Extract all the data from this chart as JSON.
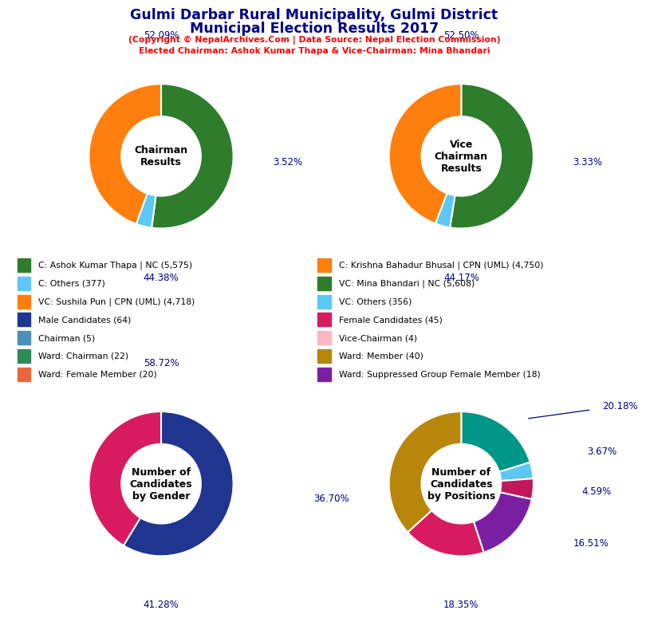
{
  "title_line1": "Gulmi Darbar Rural Municipality, Gulmi District",
  "title_line2": "Municipal Election Results 2017",
  "subtitle1": "(Copyright © NepalArchives.Com | Data Source: Nepal Election Commission)",
  "subtitle2": "Elected Chairman: Ashok Kumar Thapa & Vice-Chairman: Mina Bhandari",
  "chairman": {
    "label": "Chairman\nResults",
    "values": [
      52.09,
      3.52,
      44.38
    ],
    "colors": [
      "#2d7d2d",
      "#5bc8f5",
      "#ff7f0e"
    ],
    "pct_labels": [
      "52.09%",
      "3.52%",
      "44.38%"
    ]
  },
  "vice_chairman": {
    "label": "Vice\nChairman\nResults",
    "values": [
      52.5,
      3.33,
      44.17
    ],
    "colors": [
      "#2d7d2d",
      "#5bc8f5",
      "#ff7f0e"
    ],
    "pct_labels": [
      "52.50%",
      "3.33%",
      "44.17%"
    ]
  },
  "gender": {
    "label": "Number of\nCandidates\nby Gender",
    "values": [
      58.72,
      41.28
    ],
    "colors": [
      "#1f3590",
      "#d81b60"
    ],
    "pct_labels": [
      "58.72%",
      "41.28%"
    ]
  },
  "positions": {
    "label": "Number of\nCandidates\nby Positions",
    "values": [
      20.18,
      3.67,
      4.59,
      16.51,
      18.35,
      36.7
    ],
    "colors": [
      "#009688",
      "#5bc8f5",
      "#c2185b",
      "#7b1fa2",
      "#d81b60",
      "#b8860b"
    ],
    "pct_labels": [
      "20.18%",
      "3.67%",
      "4.59%",
      "16.51%",
      "18.35%",
      "36.70%"
    ]
  },
  "legend_left": [
    {
      "label": "C: Ashok Kumar Thapa | NC (5,575)",
      "color": "#2d7d2d"
    },
    {
      "label": "C: Others (377)",
      "color": "#5bc8f5"
    },
    {
      "label": "VC: Sushila Pun | CPN (UML) (4,718)",
      "color": "#ff7f0e"
    },
    {
      "label": "Male Candidates (64)",
      "color": "#1f3590"
    },
    {
      "label": "Chairman (5)",
      "color": "#4a90b8"
    },
    {
      "label": "Ward: Chairman (22)",
      "color": "#2e8b57"
    },
    {
      "label": "Ward: Female Member (20)",
      "color": "#e8673a"
    }
  ],
  "legend_right": [
    {
      "label": "C: Krishna Bahadur Bhusal | CPN (UML) (4,750)",
      "color": "#ff7f0e"
    },
    {
      "label": "VC: Mina Bhandari | NC (5,608)",
      "color": "#2d7d2d"
    },
    {
      "label": "VC: Others (356)",
      "color": "#5bc8f5"
    },
    {
      "label": "Female Candidates (45)",
      "color": "#d81b60"
    },
    {
      "label": "Vice-Chairman (4)",
      "color": "#ffb6c1"
    },
    {
      "label": "Ward: Member (40)",
      "color": "#b8860b"
    },
    {
      "label": "Ward: Suppressed Group Female Member (18)",
      "color": "#7b1fa2"
    }
  ]
}
